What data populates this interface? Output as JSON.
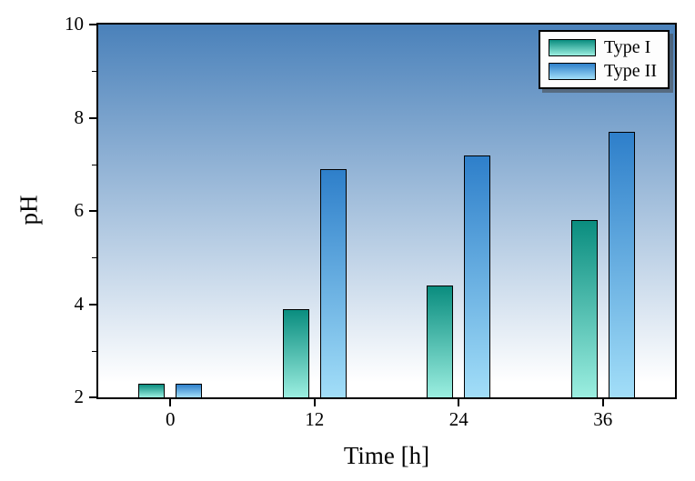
{
  "figure": {
    "ylabel": "pH",
    "xlabel": "Time [h]"
  },
  "legend": {
    "position": "top-right",
    "items": [
      {
        "label": "Type I"
      },
      {
        "label": "Type II"
      }
    ]
  },
  "colors": {
    "plot_background_top": "#4a81ba",
    "plot_background_bottom": "#ffffff",
    "frame": "#000000",
    "type1_top": "#0a8d7f",
    "type1_bottom": "#9beee0",
    "type2_top": "#2e7fca",
    "type2_bottom": "#a2def8"
  },
  "chart_data": {
    "type": "bar",
    "title": "",
    "xlabel": "Time [h]",
    "ylabel": "pH",
    "categories": [
      "0",
      "12",
      "24",
      "36"
    ],
    "series": [
      {
        "name": "Type I",
        "values": [
          2.3,
          3.9,
          4.4,
          5.8
        ],
        "color_top": "#0a8d7f",
        "color_bottom": "#9beee0"
      },
      {
        "name": "Type II",
        "values": [
          2.3,
          6.9,
          7.2,
          7.7
        ],
        "color_top": "#2e7fca",
        "color_bottom": "#a2def8"
      }
    ],
    "baseline": 2,
    "ylim": [
      2,
      10
    ],
    "yticks": [
      2,
      4,
      6,
      8,
      10
    ],
    "yticks_minor": [
      3,
      5,
      7,
      9
    ],
    "grid": false,
    "legend_position": "top-right"
  }
}
